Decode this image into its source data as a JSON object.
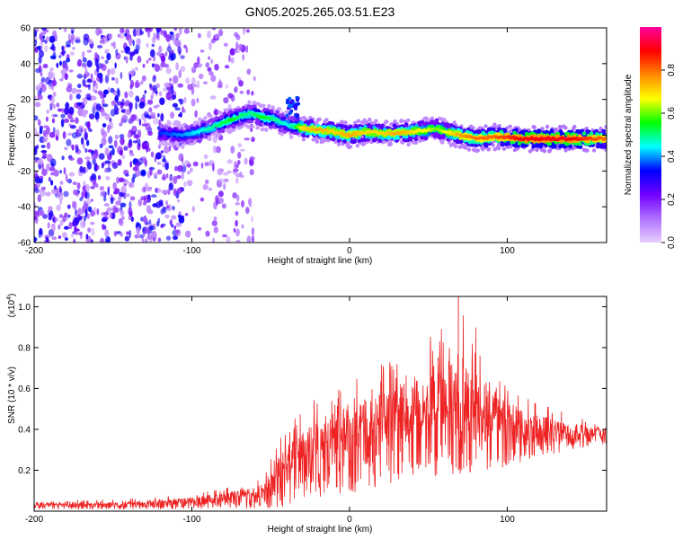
{
  "figure": {
    "title": "GN05.2025.265.03.51.E23"
  },
  "chart_data": [
    {
      "type": "heatmap",
      "xlabel": "Height of straight line (km)",
      "ylabel": "Frequency (Hz)",
      "xlim": [
        -200,
        163
      ],
      "ylim": [
        -60,
        60
      ],
      "x_ticks": [
        -200,
        -100,
        0,
        100
      ],
      "y_ticks": [
        -60,
        -40,
        -20,
        0,
        20,
        40,
        60
      ],
      "colorbar": {
        "label": "Normalized spectral amplitude",
        "range": [
          0.0,
          1.0
        ],
        "ticks": [
          0.0,
          0.2,
          0.4,
          0.6,
          0.8
        ],
        "tick_labels": [
          "0.0",
          "0.2",
          "0.4",
          "0.6",
          "0.8"
        ],
        "colors": [
          "#e8d0ff",
          "#b070ff",
          "#7000ff",
          "#0000ff",
          "#00ffff",
          "#00ff00",
          "#ffff00",
          "#ff8800",
          "#ff0000",
          "#ff00a0"
        ]
      },
      "ridge": {
        "x": [
          -120,
          -105,
          -95,
          -85,
          -75,
          -68,
          -62,
          -55,
          -48,
          -40,
          -35,
          -30,
          -20,
          -10,
          0,
          10,
          20,
          30,
          40,
          50,
          55,
          60,
          70,
          80,
          90,
          100,
          110,
          120,
          130,
          140,
          150,
          163
        ],
        "y": [
          1,
          0,
          2,
          5,
          9,
          11,
          12,
          10,
          9,
          6,
          5,
          4,
          3,
          2,
          0,
          2,
          1,
          1,
          2,
          3,
          4,
          2,
          0,
          -2,
          -1,
          -1,
          -2,
          -2,
          -2,
          -2,
          -2,
          -2
        ],
        "peak_amplitude": [
          0.35,
          0.4,
          0.45,
          0.5,
          0.55,
          0.5,
          0.5,
          0.55,
          0.5,
          0.45,
          0.5,
          0.7,
          0.75,
          0.7,
          0.75,
          0.7,
          0.7,
          0.75,
          0.7,
          0.65,
          0.6,
          0.65,
          0.75,
          0.8,
          0.8,
          0.85,
          0.9,
          0.9,
          0.9,
          0.9,
          0.85,
          0.8
        ]
      },
      "noise_region_x": [
        -200,
        -60
      ]
    },
    {
      "type": "line",
      "xlabel": "Height of straight line (km)",
      "ylabel": "SNR (10 * v/v)",
      "y_multiplier": "(x10",
      "y_multiplier_exp": "4",
      "y_multiplier_close": ")",
      "xlim": [
        -200,
        163
      ],
      "ylim": [
        0,
        10500
      ],
      "x_ticks": [
        -200,
        -100,
        0,
        100
      ],
      "y_ticks": [
        2000,
        4000,
        6000,
        8000,
        10000
      ],
      "y_tick_labels": [
        "0.2",
        "0.4",
        "0.6",
        "0.8",
        "1.0"
      ],
      "color": "#ee2222",
      "envelope": {
        "x": [
          -200,
          -150,
          -100,
          -70,
          -55,
          -45,
          -40,
          -30,
          -20,
          -10,
          0,
          10,
          20,
          30,
          40,
          50,
          60,
          70,
          80,
          90,
          100,
          110,
          120,
          130,
          140,
          150,
          163
        ],
        "mean": [
          300,
          300,
          500,
          700,
          900,
          1600,
          2200,
          2500,
          3000,
          3400,
          3600,
          3900,
          4100,
          4300,
          4400,
          4500,
          4700,
          4800,
          4600,
          4400,
          4300,
          4100,
          4000,
          3900,
          3800,
          3700,
          3700
        ],
        "max": [
          500,
          600,
          800,
          1300,
          1700,
          3600,
          4200,
          5000,
          5600,
          6200,
          6300,
          6800,
          7200,
          7600,
          8400,
          8600,
          9000,
          10500,
          9200,
          7200,
          6300,
          5600,
          5300,
          5100,
          4800,
          4600,
          4500
        ],
        "min": [
          100,
          100,
          100,
          100,
          100,
          200,
          200,
          300,
          500,
          700,
          900,
          1000,
          1200,
          1400,
          1500,
          1600,
          1700,
          1800,
          1900,
          2000,
          2200,
          2400,
          2600,
          2800,
          3000,
          3100,
          3200
        ]
      }
    }
  ]
}
